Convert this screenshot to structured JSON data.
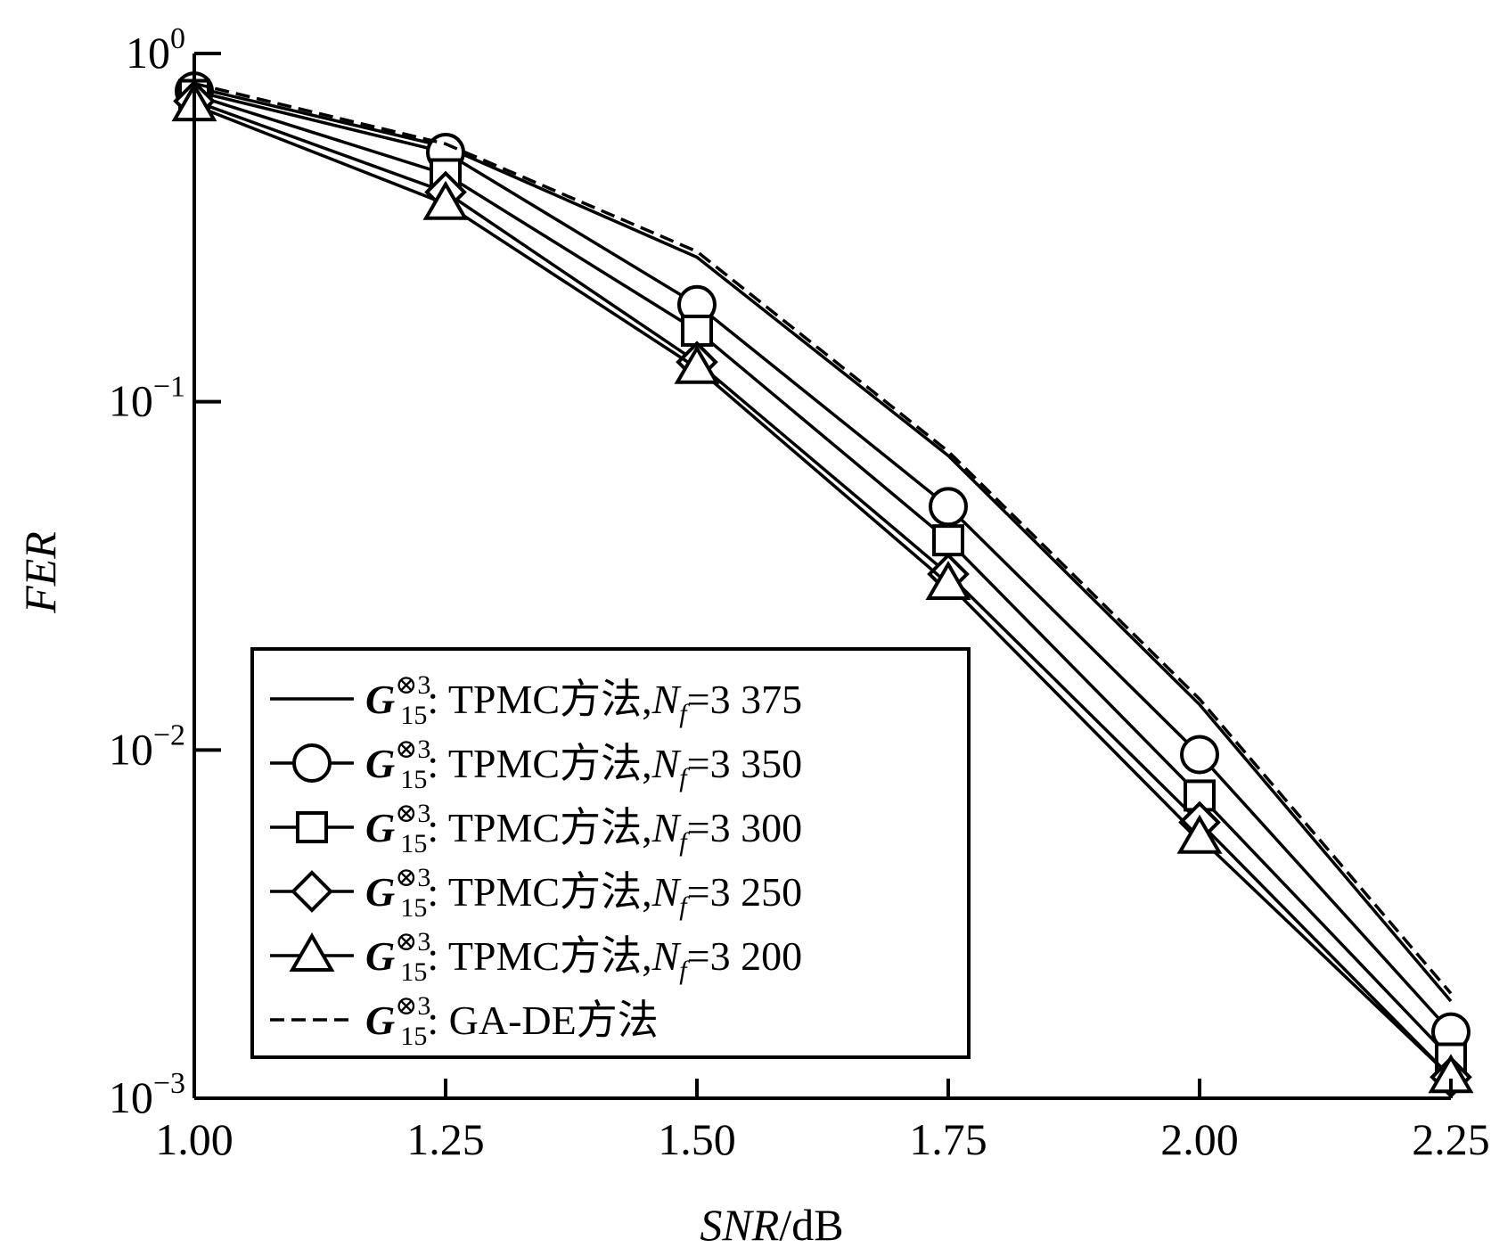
{
  "chart_data": {
    "type": "line",
    "xlabel": {
      "var": "SNR",
      "unit": "/dB"
    },
    "ylabel": "FER",
    "y_scale": "log",
    "xlim": [
      1.0,
      2.25
    ],
    "ylim": [
      0.001,
      1
    ],
    "x_ticks": [
      "1.00",
      "1.25",
      "1.50",
      "1.75",
      "2.00",
      "2.25"
    ],
    "y_ticks": [
      {
        "value": 1,
        "base": "10",
        "exp": "0"
      },
      {
        "value": 0.1,
        "base": "10",
        "exp": "−1"
      },
      {
        "value": 0.01,
        "base": "10",
        "exp": "−2"
      },
      {
        "value": 0.001,
        "base": "10",
        "exp": "−3"
      }
    ],
    "x": [
      1.0,
      1.25,
      1.5,
      1.75,
      2.0,
      2.25
    ],
    "legend_position": "bottom-left",
    "series": [
      {
        "name": "TPMC方法,Nf=3 375",
        "marker": "none",
        "dash": "solid",
        "values": [
          0.8,
          0.54,
          0.26,
          0.07,
          0.0135,
          0.0019
        ]
      },
      {
        "name": "TPMC方法,Nf=3 350",
        "marker": "circle",
        "dash": "solid",
        "values": [
          0.78,
          0.52,
          0.19,
          0.05,
          0.0097,
          0.00155
        ]
      },
      {
        "name": "TPMC方法,Nf=3 300",
        "marker": "square",
        "dash": "solid",
        "values": [
          0.76,
          0.45,
          0.16,
          0.04,
          0.0074,
          0.0013
        ]
      },
      {
        "name": "TPMC方法,Nf=3 250",
        "marker": "diamond",
        "dash": "solid",
        "values": [
          0.73,
          0.4,
          0.13,
          0.032,
          0.0062,
          0.00115
        ]
      },
      {
        "name": "TPMC方法,Nf=3 200",
        "marker": "triangle",
        "dash": "solid",
        "values": [
          0.71,
          0.37,
          0.125,
          0.03,
          0.0056,
          0.00115
        ]
      },
      {
        "name": "GA-DE方法",
        "marker": "none",
        "dash": "dashed",
        "values": [
          0.82,
          0.55,
          0.27,
          0.072,
          0.014,
          0.002
        ]
      }
    ],
    "legend": [
      {
        "g": "G",
        "sub": "15",
        "sup": "⊗3",
        "text": ": TPMC方法,",
        "nvar": "N",
        "nsub": "f",
        "tail": "=3 375"
      },
      {
        "g": "G",
        "sub": "15",
        "sup": "⊗3",
        "text": ": TPMC方法,",
        "nvar": "N",
        "nsub": "f",
        "tail": "=3 350"
      },
      {
        "g": "G",
        "sub": "15",
        "sup": "⊗3",
        "text": ": TPMC方法,",
        "nvar": "N",
        "nsub": "f",
        "tail": "=3 300"
      },
      {
        "g": "G",
        "sub": "15",
        "sup": "⊗3",
        "text": ": TPMC方法,",
        "nvar": "N",
        "nsub": "f",
        "tail": "=3 250"
      },
      {
        "g": "G",
        "sub": "15",
        "sup": "⊗3",
        "text": ": TPMC方法,",
        "nvar": "N",
        "nsub": "f",
        "tail": "=3 200"
      },
      {
        "g": "G",
        "sub": "15",
        "sup": "⊗3",
        "text": ": GA-DE方法",
        "nvar": "",
        "nsub": "",
        "tail": ""
      }
    ]
  }
}
